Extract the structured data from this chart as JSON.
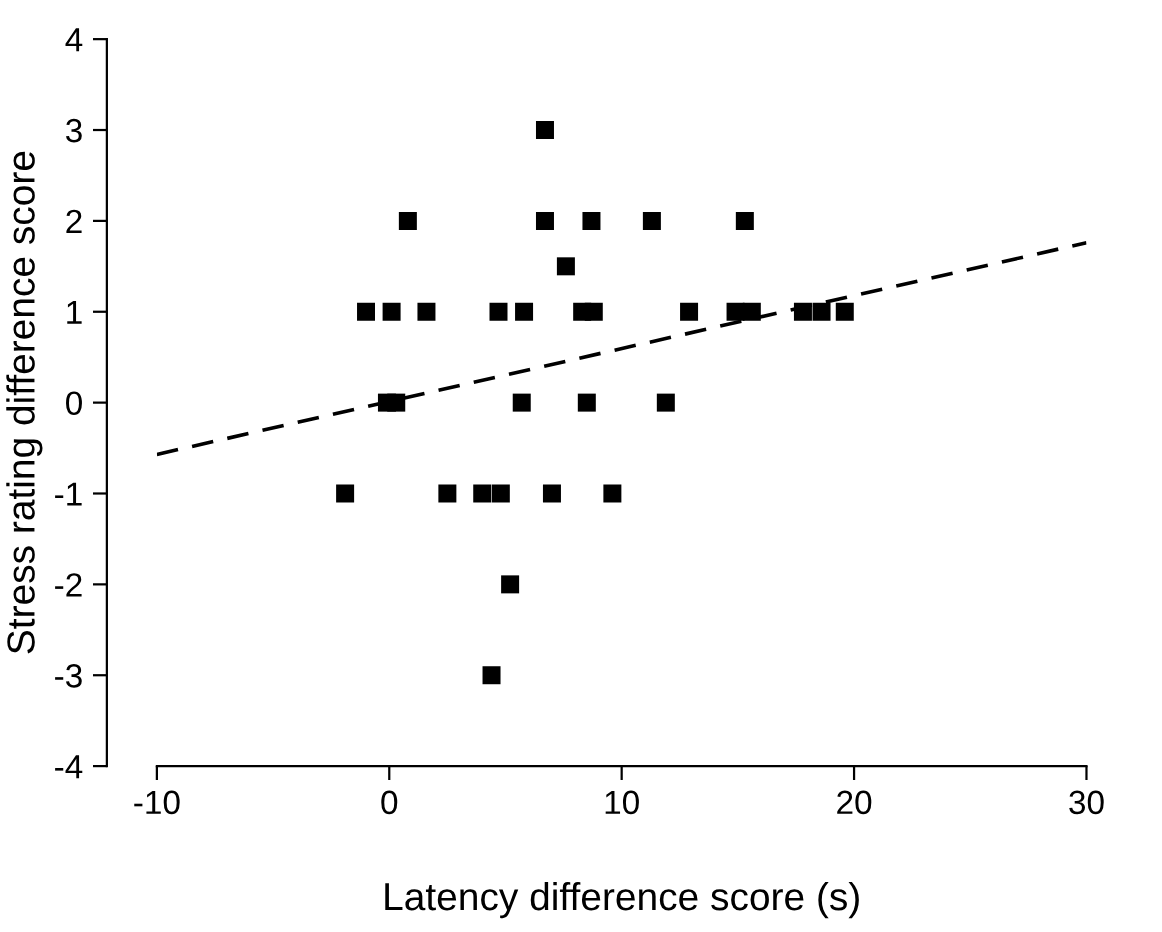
{
  "chart_data": {
    "type": "scatter",
    "xlabel": "Latency difference score (s)",
    "ylabel": "Stress rating difference score",
    "xlim": [
      -10,
      30
    ],
    "xticks": [
      -10,
      0,
      10,
      20,
      30
    ],
    "ylim": [
      -4,
      4
    ],
    "yticks": [
      -4,
      -3,
      -2,
      -1,
      0,
      1,
      2,
      3,
      4
    ],
    "grid": false,
    "legend": false,
    "series": [
      {
        "color": "#000000",
        "marker": "square",
        "x": [
          6.7,
          0.8,
          6.7,
          8.7,
          11.3,
          15.3,
          7.6,
          -1.0,
          0.1,
          1.6,
          4.7,
          5.8,
          8.3,
          8.8,
          12.9,
          14.9,
          15.6,
          17.8,
          18.6,
          19.6,
          -0.1,
          0.3,
          5.7,
          8.5,
          11.9,
          -1.9,
          2.5,
          4.0,
          4.8,
          7.0,
          9.6,
          5.2,
          4.4
        ],
        "values": [
          3,
          2,
          2,
          2,
          2,
          2,
          1.5,
          1,
          1,
          1,
          1,
          1,
          1,
          1,
          1,
          1,
          1,
          1,
          1,
          1,
          0,
          0,
          0,
          0,
          0,
          -1,
          -1,
          -1,
          -1,
          -1,
          -1,
          -2,
          -3
        ]
      },
      {
        "type": "line",
        "color": "#000000",
        "line_style": "dashed",
        "marker": "none",
        "x": [
          -10,
          30
        ],
        "values": [
          -0.57,
          1.76
        ]
      }
    ]
  }
}
